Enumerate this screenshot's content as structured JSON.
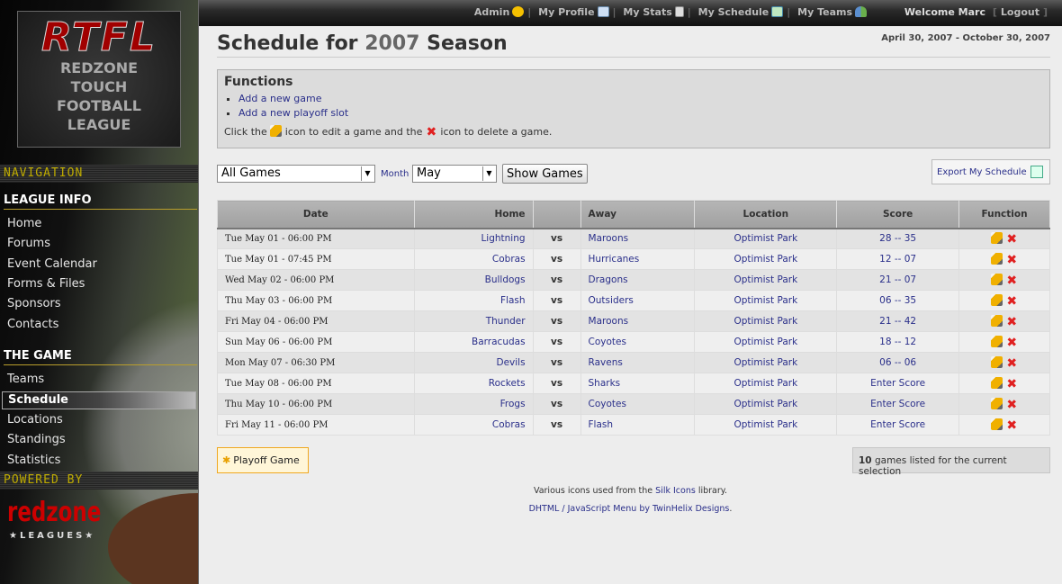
{
  "sidebar": {
    "logo": {
      "title": "RTFL",
      "lines": [
        "REDZONE",
        "TOUCH",
        "FOOTBALL",
        "LEAGUE"
      ]
    },
    "navigation_label": "NAVIGATION",
    "sections": [
      {
        "title": "LEAGUE INFO",
        "items": [
          "Home",
          "Forums",
          "Event Calendar",
          "Forms & Files",
          "Sponsors",
          "Contacts"
        ]
      },
      {
        "title": "THE GAME",
        "items": [
          "Teams",
          "Schedule",
          "Locations",
          "Standings",
          "Statistics"
        ]
      }
    ],
    "active_item": "Schedule",
    "powered_by_label": "POWERED BY",
    "brand": {
      "name": "redzone",
      "tagline": "★LEAGUES★"
    }
  },
  "topbar": {
    "links": [
      {
        "label": "Admin",
        "icon": "star-icon"
      },
      {
        "label": "My Profile",
        "icon": "vcard-icon"
      },
      {
        "label": "My Stats",
        "icon": "calculator-icon"
      },
      {
        "label": "My Schedule",
        "icon": "calendar-icon"
      },
      {
        "label": "My Teams",
        "icon": "group-icon"
      }
    ],
    "welcome": "Welcome Marc",
    "logout": "Logout"
  },
  "page": {
    "title_prefix": "Schedule for",
    "season": "2007",
    "title_suffix": "Season",
    "date_range": "April 30, 2007 - October 30, 2007"
  },
  "functions": {
    "title": "Functions",
    "links": [
      "Add a new game",
      "Add a new playoff slot"
    ],
    "hint": [
      "Click the",
      "icon to edit a game and the",
      "icon to delete a game."
    ]
  },
  "filters": {
    "games_select": "All Games",
    "month_label": "Month",
    "month_select": "May",
    "show_button": "Show Games",
    "export_label": "Export My Schedule"
  },
  "table": {
    "headers": [
      "Date",
      "Home",
      "",
      "Away",
      "Location",
      "Score",
      "Function"
    ],
    "rows": [
      {
        "date": "Tue May 01 - 06:00 PM",
        "home": "Lightning",
        "vs": "vs",
        "away": "Maroons",
        "location": "Optimist Park",
        "score": "28 -- 35"
      },
      {
        "date": "Tue May 01 - 07:45 PM",
        "home": "Cobras",
        "vs": "vs",
        "away": "Hurricanes",
        "location": "Optimist Park",
        "score": "12 -- 07"
      },
      {
        "date": "Wed May 02 - 06:00 PM",
        "home": "Bulldogs",
        "vs": "vs",
        "away": "Dragons",
        "location": "Optimist Park",
        "score": "21 -- 07"
      },
      {
        "date": "Thu May 03 - 06:00 PM",
        "home": "Flash",
        "vs": "vs",
        "away": "Outsiders",
        "location": "Optimist Park",
        "score": "06 -- 35"
      },
      {
        "date": "Fri May 04 - 06:00 PM",
        "home": "Thunder",
        "vs": "vs",
        "away": "Maroons",
        "location": "Optimist Park",
        "score": "21 -- 42"
      },
      {
        "date": "Sun May 06 - 06:00 PM",
        "home": "Barracudas",
        "vs": "vs",
        "away": "Coyotes",
        "location": "Optimist Park",
        "score": "18 -- 12"
      },
      {
        "date": "Mon May 07 - 06:30 PM",
        "home": "Devils",
        "vs": "vs",
        "away": "Ravens",
        "location": "Optimist Park",
        "score": "06 -- 06"
      },
      {
        "date": "Tue May 08 - 06:00 PM",
        "home": "Rockets",
        "vs": "vs",
        "away": "Sharks",
        "location": "Optimist Park",
        "score": "Enter Score"
      },
      {
        "date": "Thu May 10 - 06:00 PM",
        "home": "Frogs",
        "vs": "vs",
        "away": "Coyotes",
        "location": "Optimist Park",
        "score": "Enter Score"
      },
      {
        "date": "Fri May 11 - 06:00 PM",
        "home": "Cobras",
        "vs": "vs",
        "away": "Flash",
        "location": "Optimist Park",
        "score": "Enter Score"
      }
    ]
  },
  "playoff_button": "Playoff Game",
  "count": {
    "number": "10",
    "text": "games listed for the current selection"
  },
  "footer": {
    "line1": [
      "Various icons used from the",
      "Silk Icons",
      "library."
    ],
    "line2": [
      "DHTML / JavaScript Menu",
      "by",
      "TwinHelix Designs",
      "."
    ]
  }
}
